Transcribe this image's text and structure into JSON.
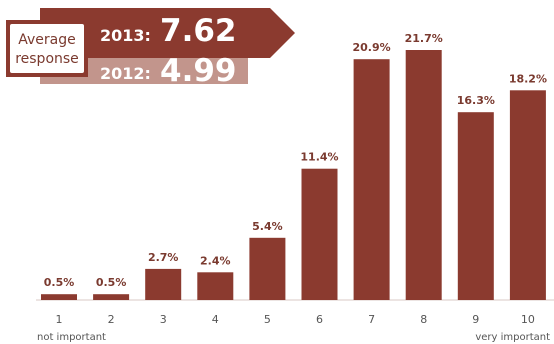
{
  "chart_data": {
    "type": "bar",
    "categories": [
      "1",
      "2",
      "3",
      "4",
      "5",
      "6",
      "7",
      "8",
      "9",
      "10"
    ],
    "values": [
      0.5,
      0.5,
      2.7,
      2.4,
      5.4,
      11.4,
      20.9,
      21.7,
      16.3,
      18.2
    ],
    "value_labels": [
      "0.5%",
      "0.5%",
      "2.7%",
      "2.4%",
      "5.4%",
      "11.4%",
      "20.9%",
      "21.7%",
      "16.3%",
      "18.2%"
    ],
    "ylim": [
      0,
      23
    ],
    "grid": false,
    "bar_color": "#8b3a2f",
    "x_annotations": {
      "low": "not important",
      "high": "very important"
    }
  },
  "badge": {
    "label_line1": "Average",
    "label_line2": "response",
    "rows": [
      {
        "year": "2013:",
        "value": "7.62",
        "color": "#8b3a2f"
      },
      {
        "year": "2012:",
        "value": "4.99",
        "color": "#c2958c"
      }
    ]
  }
}
